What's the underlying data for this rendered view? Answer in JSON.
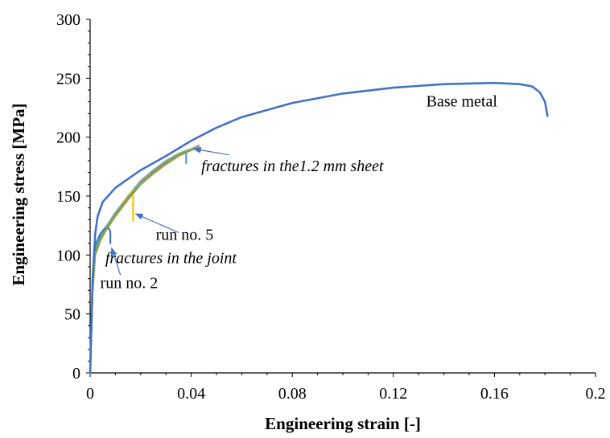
{
  "chart_data": {
    "type": "line",
    "title": "",
    "xlabel": "Engineering strain  [-]",
    "ylabel": "Engineering stress  [MPa]",
    "xlim": [
      0,
      0.2
    ],
    "ylim": [
      0,
      300
    ],
    "xticks": [
      0,
      0.04,
      0.08,
      0.12,
      0.16,
      0.2
    ],
    "xtick_labels": [
      "0",
      "0.04",
      "0.08",
      "0.12",
      "0.16",
      "0.2"
    ],
    "yticks": [
      0,
      50,
      100,
      150,
      200,
      250,
      300
    ],
    "ytick_labels": [
      "0",
      "50",
      "100",
      "150",
      "200",
      "250",
      "300"
    ],
    "grid": false,
    "legend": "none",
    "series": [
      {
        "color": "#4472C4",
        "x": [
          0,
          0.001,
          0.002,
          0.003,
          0.005,
          0.01,
          0.02,
          0.03,
          0.04,
          0.05,
          0.06,
          0.08,
          0.1,
          0.12,
          0.14,
          0.16,
          0.17,
          0.175,
          0.178,
          0.18,
          0.181
        ],
        "y": [
          0,
          80,
          118,
          133,
          145,
          157,
          172,
          184,
          197,
          208,
          217,
          229,
          237,
          242,
          245,
          246,
          245,
          243,
          238,
          230,
          218
        ]
      },
      {
        "color": "#ED7D31",
        "x": [
          0,
          0.001,
          0.002,
          0.004,
          0.006,
          0.01,
          0.015,
          0.02,
          0.025,
          0.03,
          0.035,
          0.04,
          0.043
        ],
        "y": [
          0,
          70,
          100,
          112,
          120,
          133,
          147,
          160,
          169,
          177,
          184,
          189,
          192
        ]
      },
      {
        "color": "#A5A5A5",
        "x": [
          0,
          0.001,
          0.002,
          0.004,
          0.006,
          0.01,
          0.015,
          0.02,
          0.025,
          0.03,
          0.035,
          0.04,
          0.043
        ],
        "y": [
          0,
          74,
          104,
          115,
          123,
          136,
          150,
          163,
          172,
          180,
          186,
          190,
          193
        ]
      },
      {
        "color": "#FFC000",
        "x": [
          0,
          0.001,
          0.002,
          0.004,
          0.006,
          0.01,
          0.014,
          0.017,
          0.017
        ],
        "y": [
          0,
          72,
          102,
          114,
          122,
          135,
          147,
          155,
          129
        ]
      },
      {
        "color": "#5B9BD5",
        "x": [
          0,
          0.001,
          0.002,
          0.004,
          0.006,
          0.01,
          0.015,
          0.02,
          0.025,
          0.03,
          0.035,
          0.038,
          0.038
        ],
        "y": [
          0,
          73,
          103,
          115,
          122,
          135,
          149,
          161,
          171,
          179,
          185,
          188,
          178
        ]
      },
      {
        "color": "#4472C4",
        "x": [
          0,
          0.001,
          0.002,
          0.004,
          0.006,
          0.007,
          0.008,
          0.008
        ],
        "y": [
          0,
          78,
          108,
          118,
          123,
          124,
          120,
          110
        ]
      },
      {
        "color": "#70AD47",
        "x": [
          0,
          0.001,
          0.002,
          0.004,
          0.006,
          0.01,
          0.015,
          0.02,
          0.025,
          0.03,
          0.035,
          0.04,
          0.042
        ],
        "y": [
          0,
          71,
          101,
          113,
          121,
          134,
          148,
          160,
          170,
          178,
          185,
          189,
          191
        ]
      }
    ],
    "annotations": [
      {
        "text": "Base metal",
        "italic": false,
        "x": 0.133,
        "y": 226
      },
      {
        "text": "fractures in the1.2 mm sheet",
        "italic": true,
        "x": 0.044,
        "y": 171,
        "arrow_from": [
          0.055,
          185
        ],
        "arrow_to": [
          0.041,
          190
        ]
      },
      {
        "text": "run no. 5",
        "italic": false,
        "x": 0.026,
        "y": 113,
        "arrow_from": [
          0.035,
          119
        ],
        "arrow_to": [
          0.018,
          135
        ]
      },
      {
        "text": "fractures in the joint",
        "italic": true,
        "x": 0.006,
        "y": 93
      },
      {
        "text": "run no. 2",
        "italic": false,
        "x": 0.004,
        "y": 72,
        "arrow_from": [
          0.012,
          83
        ],
        "arrow_to": [
          0.0085,
          106
        ]
      }
    ]
  }
}
